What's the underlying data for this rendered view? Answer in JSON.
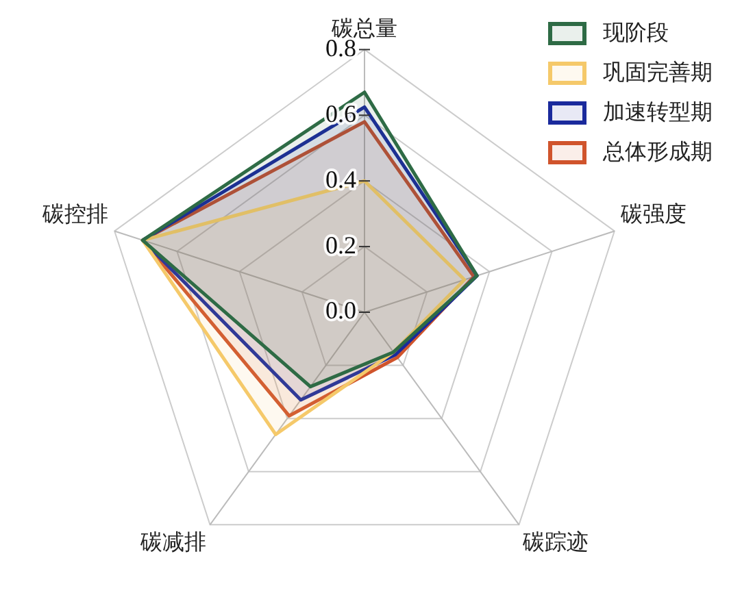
{
  "chart_data": {
    "type": "radar",
    "categories": [
      "碳总量",
      "碳强度",
      "碳踪迹",
      "碳减排",
      "碳控排"
    ],
    "series": [
      {
        "name": "现阶段",
        "color": "#2e6b45",
        "values": [
          0.67,
          0.36,
          0.15,
          0.28,
          0.71
        ]
      },
      {
        "name": "巩固完善期",
        "color": "#f5c96a",
        "values": [
          0.4,
          0.32,
          0.15,
          0.46,
          0.71
        ]
      },
      {
        "name": "加速转型期",
        "color": "#1a2a9c",
        "values": [
          0.625,
          0.36,
          0.16,
          0.33,
          0.71
        ]
      },
      {
        "name": "总体形成期",
        "color": "#d0542c",
        "values": [
          0.58,
          0.35,
          0.17,
          0.39,
          0.71
        ]
      }
    ],
    "ylim": [
      0,
      0.8
    ],
    "yticks": [
      {
        "value": 0,
        "label": "0.0"
      },
      0.2,
      0.4,
      0.6,
      0.8
    ],
    "grid": true,
    "legend": "top right",
    "marker": "none",
    "line_style": "solid"
  }
}
